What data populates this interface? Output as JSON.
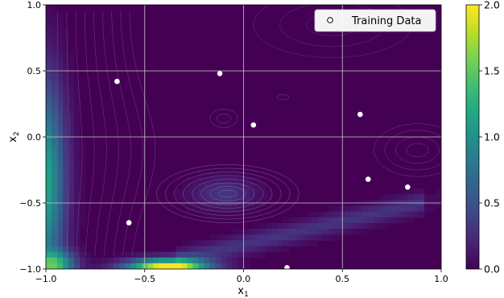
{
  "chart_data": {
    "type": "heatmap",
    "description_note": "",
    "title": "",
    "xlabel_base": "x",
    "xlabel_sub": "1",
    "ylabel_base": "x",
    "ylabel_sub": "2",
    "xlim": [
      -1.0,
      1.0
    ],
    "ylim": [
      -1.0,
      1.0
    ],
    "x_ticks": [
      {
        "value": -1.0,
        "label": "−1.0"
      },
      {
        "value": -0.5,
        "label": "−0.5"
      },
      {
        "value": 0.0,
        "label": "0.0"
      },
      {
        "value": 0.5,
        "label": "0.5"
      },
      {
        "value": 1.0,
        "label": "1.0"
      }
    ],
    "y_ticks": [
      {
        "value": -1.0,
        "label": "−1.0"
      },
      {
        "value": -0.5,
        "label": "−0.5"
      },
      {
        "value": 0.0,
        "label": "0.0"
      },
      {
        "value": 0.5,
        "label": "0.5"
      },
      {
        "value": 1.0,
        "label": "1.0"
      }
    ],
    "grid": true,
    "colormap": "viridis",
    "colorbar": {
      "range": [
        0.0,
        2.0
      ],
      "ticks": [
        {
          "value": 0.0,
          "label": "0.0"
        },
        {
          "value": 0.5,
          "label": "0.5"
        },
        {
          "value": 1.0,
          "label": "1.0"
        },
        {
          "value": 1.5,
          "label": "1.5"
        },
        {
          "value": 2.0,
          "label": "2.0"
        }
      ]
    },
    "legend": {
      "placement": "top-right",
      "entries": [
        {
          "label": "Training Data",
          "marker": "open-circle"
        }
      ]
    },
    "series": [
      {
        "name": "Training Data",
        "type": "scatter",
        "points": [
          {
            "x": -0.64,
            "y": 0.42
          },
          {
            "x": -0.12,
            "y": 0.48
          },
          {
            "x": 0.05,
            "y": 0.09
          },
          {
            "x": 0.59,
            "y": 0.17
          },
          {
            "x": 0.63,
            "y": -0.32
          },
          {
            "x": 0.83,
            "y": -0.38
          },
          {
            "x": -0.58,
            "y": -0.65
          },
          {
            "x": 0.22,
            "y": -0.99
          }
        ]
      }
    ]
  },
  "colors": {
    "point_fill": "#ffffff",
    "grid_line": "#c8c8c8",
    "contour_line": "#9a86c4"
  }
}
